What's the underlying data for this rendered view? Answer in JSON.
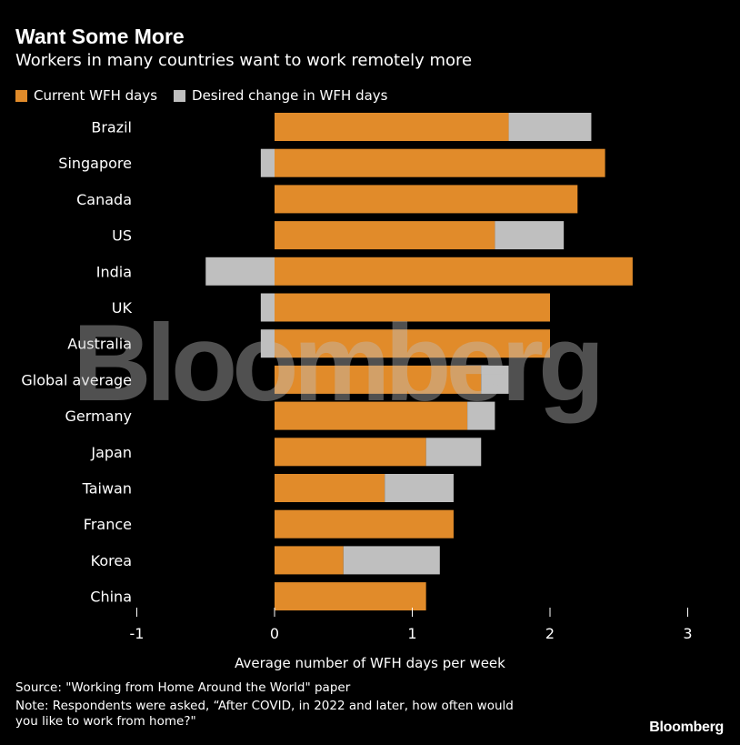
{
  "title": "Want Some More",
  "subtitle": "Workers in many countries want to work remotely more",
  "colors": {
    "current": "#e18b2a",
    "desired": "#bfbfbf",
    "background": "#000000",
    "text": "#ffffff"
  },
  "chart_data": {
    "type": "bar",
    "orientation": "horizontal",
    "stacked": true,
    "categories": [
      "Brazil",
      "Singapore",
      "Canada",
      "US",
      "India",
      "UK",
      "Australia",
      "Global average",
      "Germany",
      "Japan",
      "Taiwan",
      "France",
      "Korea",
      "China"
    ],
    "series": [
      {
        "name": "Current WFH days",
        "color": "#e18b2a",
        "values": [
          1.7,
          2.4,
          2.2,
          1.6,
          2.6,
          2.0,
          2.0,
          1.5,
          1.4,
          1.1,
          0.8,
          1.3,
          0.5,
          1.1
        ]
      },
      {
        "name": "Desired change in WFH days",
        "color": "#bfbfbf",
        "values": [
          0.6,
          -0.1,
          0.0,
          0.5,
          -0.5,
          -0.1,
          -0.1,
          0.2,
          0.2,
          0.4,
          0.5,
          0.0,
          0.7,
          0.0
        ]
      }
    ],
    "xlabel": "Average number of WFH days per week",
    "xlim": [
      -1,
      3
    ],
    "xticks": [
      -1,
      0,
      1,
      2,
      3
    ],
    "xtick_labels": [
      "-1",
      "0",
      "1",
      "2",
      "3"
    ],
    "grid": false,
    "legend_position": "top-left"
  },
  "footer": {
    "source": "Source: \"Working from Home Around the World\" paper",
    "note_line1": "Note: Respondents were asked, “After COVID, in 2022 and later, how often would",
    "note_line2": "you like to work from home?\""
  },
  "brand": "Bloomberg",
  "watermark": "Bloomberg"
}
